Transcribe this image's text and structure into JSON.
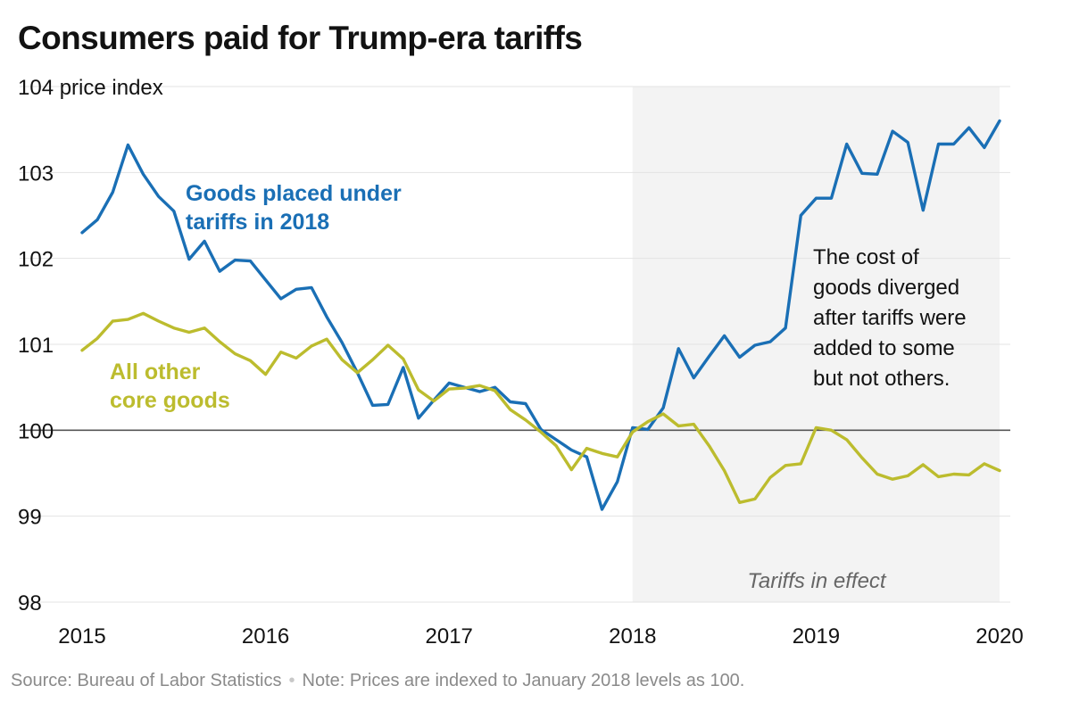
{
  "header": {
    "title": "Consumers paid for Trump-era tariffs"
  },
  "chart_data": {
    "type": "line",
    "ylabel_inline": "price index",
    "ylim": [
      98,
      104
    ],
    "yticks": [
      98,
      99,
      100,
      101,
      102,
      103,
      104
    ],
    "xlim": [
      2015,
      2020
    ],
    "xticks": [
      "2015",
      "2016",
      "2017",
      "2018",
      "2019",
      "2020"
    ],
    "baseline": 100,
    "grid": true,
    "shaded_region": {
      "start": 2018,
      "end": 2020,
      "label": "Tariffs in effect"
    },
    "annotation": [
      "The cost of",
      "goods diverged",
      "after tariffs were",
      "added to some",
      "but not others."
    ],
    "series": [
      {
        "name": "Goods placed under tariffs in 2018",
        "label_lines": [
          "Goods placed under",
          "tariffs in 2018"
        ],
        "color": "#1a6fb5",
        "values": [
          102.3,
          102.45,
          102.77,
          103.32,
          102.98,
          102.72,
          102.55,
          101.99,
          102.2,
          101.85,
          101.98,
          101.97,
          101.75,
          101.53,
          101.64,
          101.66,
          101.32,
          101.02,
          100.67,
          100.29,
          100.3,
          100.73,
          100.14,
          100.35,
          100.55,
          100.5,
          100.45,
          100.5,
          100.33,
          100.31,
          100.01,
          99.89,
          99.77,
          99.69,
          99.08,
          99.4,
          100.03,
          100.01,
          100.26,
          100.95,
          100.61,
          100.86,
          101.1,
          100.85,
          100.99,
          101.03,
          101.19,
          102.5,
          102.7,
          102.7,
          103.33,
          102.99,
          102.98,
          103.48,
          103.35,
          102.56,
          103.33,
          103.33,
          103.52,
          103.29,
          103.6
        ]
      },
      {
        "name": "All other core goods",
        "label_lines": [
          "All other",
          "core goods"
        ],
        "color": "#bcbc2e",
        "values": [
          100.93,
          101.07,
          101.27,
          101.29,
          101.36,
          101.27,
          101.19,
          101.14,
          101.19,
          101.03,
          100.89,
          100.81,
          100.65,
          100.91,
          100.84,
          100.98,
          101.06,
          100.82,
          100.67,
          100.82,
          100.99,
          100.83,
          100.47,
          100.34,
          100.48,
          100.49,
          100.52,
          100.46,
          100.24,
          100.12,
          99.98,
          99.82,
          99.54,
          99.79,
          99.73,
          99.69,
          99.98,
          100.1,
          100.19,
          100.05,
          100.07,
          99.82,
          99.53,
          99.16,
          99.2,
          99.45,
          99.59,
          99.61,
          100.03,
          100.0,
          99.89,
          99.68,
          99.49,
          99.43,
          99.47,
          99.6,
          99.46,
          99.49,
          99.48,
          99.61,
          99.53
        ]
      }
    ]
  },
  "footer": {
    "source": "Source: Bureau of Labor Statistics",
    "separator": "•",
    "note": "Note: Prices are indexed to January 2018 levels as 100."
  }
}
